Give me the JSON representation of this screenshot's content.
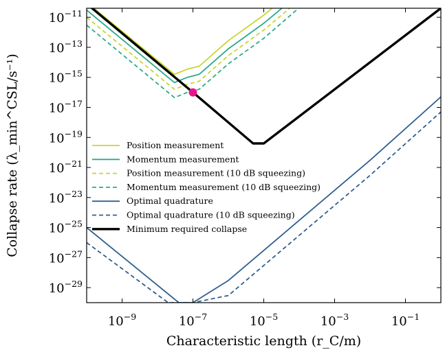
{
  "chart_data": {
    "type": "line",
    "xlabel": "Characteristic length (r_C/m)",
    "ylabel": "Collapse rate (λ_min^CSL/s⁻¹)",
    "x_scale": "log",
    "y_scale": "log",
    "xlim": [
      1e-10,
      1
    ],
    "ylim": [
      1e-30,
      4e-11
    ],
    "x_ticks": [
      {
        "value": 1e-09,
        "label_base": "10",
        "label_exp": "−9"
      },
      {
        "value": 1e-07,
        "label_base": "10",
        "label_exp": "−7"
      },
      {
        "value": 1e-05,
        "label_base": "10",
        "label_exp": "−5"
      },
      {
        "value": 0.001,
        "label_base": "10",
        "label_exp": "−3"
      },
      {
        "value": 0.1,
        "label_base": "10",
        "label_exp": "−1"
      }
    ],
    "y_ticks": [
      {
        "value": 1e-11,
        "label_base": "10",
        "label_exp": "−11"
      },
      {
        "value": 1e-13,
        "label_base": "10",
        "label_exp": "−13"
      },
      {
        "value": 1e-15,
        "label_base": "10",
        "label_exp": "−15"
      },
      {
        "value": 1e-17,
        "label_base": "10",
        "label_exp": "−17"
      },
      {
        "value": 1e-19,
        "label_base": "10",
        "label_exp": "−19"
      },
      {
        "value": 1e-21,
        "label_base": "10",
        "label_exp": "−21"
      },
      {
        "value": 1e-23,
        "label_base": "10",
        "label_exp": "−23"
      },
      {
        "value": 1e-25,
        "label_base": "10",
        "label_exp": "−25"
      },
      {
        "value": 1e-27,
        "label_base": "10",
        "label_exp": "−27"
      },
      {
        "value": 1e-29,
        "label_base": "10",
        "label_exp": "−29"
      }
    ],
    "grid": false,
    "legend_position": "left",
    "series": [
      {
        "name": "Position measurement",
        "color": "#c8d62e",
        "dash": "solid",
        "width": 1.8,
        "x": [
          1e-10,
          3e-08,
          7e-08,
          1.5e-07,
          1e-06,
          1e-05,
          4e-05
        ],
        "y": [
          1e-10,
          1.6e-15,
          3.5e-15,
          5.5e-15,
          2.8e-13,
          1.4e-11,
          2e-10
        ]
      },
      {
        "name": "Momentum measurement",
        "color": "#2aaa8a",
        "dash": "solid",
        "width": 1.8,
        "x": [
          1e-10,
          3e-08,
          7e-08,
          1.5e-07,
          1e-06,
          1e-05,
          4e-05
        ],
        "y": [
          3e-11,
          4.5e-16,
          1e-15,
          1.6e-15,
          8e-14,
          4e-12,
          6e-11
        ]
      },
      {
        "name": "Position measurement (10 dB squeezing)",
        "color": "#c8d62e",
        "dash": "dashed",
        "width": 1.8,
        "x": [
          1e-10,
          3e-08,
          7e-08,
          1.5e-07,
          1e-06,
          1e-05,
          6e-05
        ],
        "y": [
          1e-11,
          1.6e-16,
          3.5e-16,
          5.5e-16,
          2.8e-14,
          1.4e-12,
          5e-11
        ]
      },
      {
        "name": "Momentum measurement (10 dB squeezing)",
        "color": "#2aaa8a",
        "dash": "dashed",
        "width": 1.8,
        "x": [
          1e-10,
          3e-08,
          7e-08,
          1.5e-07,
          1e-06,
          1e-05,
          0.0001
        ],
        "y": [
          3e-12,
          4.5e-17,
          1e-16,
          1.6e-16,
          8e-15,
          4e-13,
          4.3e-11
        ]
      },
      {
        "name": "Optimal quadrature",
        "color": "#2f5e8e",
        "dash": "solid",
        "width": 1.8,
        "x": [
          1e-10,
          4e-08,
          1e-07,
          1e-06,
          0.0001,
          0.01,
          1
        ],
        "y": [
          1e-25,
          1e-30,
          1e-30,
          3e-29,
          3e-25,
          3e-21,
          5e-17
        ]
      },
      {
        "name": "Optimal quadrature (10 dB squeezing)",
        "color": "#2f5e8e",
        "dash": "dashed",
        "width": 1.8,
        "x": [
          1e-10,
          2e-08,
          1e-07,
          1e-06,
          0.0001,
          0.01,
          1
        ],
        "y": [
          1e-26,
          1e-30,
          1e-30,
          3e-30,
          3e-26,
          3e-22,
          5e-18
        ]
      },
      {
        "name": "Minimum required collapse",
        "color": "#000000",
        "dash": "solid",
        "width": 3.4,
        "x": [
          1e-10,
          1e-07,
          5e-06,
          1e-05,
          1
        ],
        "y": [
          8e-11,
          1e-16,
          4e-20,
          4e-20,
          4e-11
        ]
      }
    ],
    "markers": [
      {
        "x": 1e-07,
        "y": 1e-16,
        "color": "#e6158c"
      }
    ]
  }
}
